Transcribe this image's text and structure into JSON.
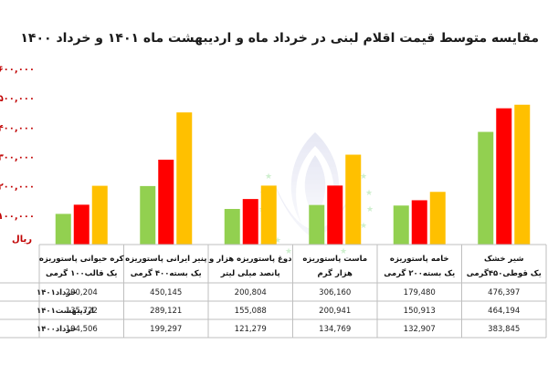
{
  "chart_data": {
    "type": "bar",
    "title": "مقایسه متوسط قیمت اقلام لبنی در خرداد ماه  و اردیبهشت ماه ۱۴۰۱ و خرداد ۱۴۰۰",
    "ylabel": "ریال",
    "ylim": [
      0,
      600000
    ],
    "y_ticks": [
      "۱۰۰,۰۰۰",
      "۲۰۰,۰۰۰",
      "۳۰۰,۰۰۰",
      "۴۰۰,۰۰۰",
      "۵۰۰,۰۰۰",
      "۶۰۰,۰۰۰"
    ],
    "y_tick_values": [
      100000,
      200000,
      300000,
      400000,
      500000,
      600000
    ],
    "categories": [
      [
        "کره حیوانی پاستوریزه",
        "یک قالب۱۰۰ گرمی"
      ],
      [
        "پنیر ایرانی پاستوریزه",
        "یک بسته۴۰۰ گرمی"
      ],
      [
        "دوغ پاستوریزه هزار و",
        "پانصد میلی لیتر"
      ],
      [
        "ماست پاستوریزه",
        "هزار گرم"
      ],
      [
        "خامه پاستوریزه",
        "یک بسته۲۰۰ گرمی"
      ],
      [
        "شیر خشک",
        "یک قوطی۴۵۰گرمی"
      ]
    ],
    "series": [
      {
        "name": "خرداد۱۴۰۱",
        "color": "#ffc000",
        "values": [
          200204,
          450145,
          200804,
          306160,
          179480,
          476397
        ],
        "labels": [
          "200,204",
          "450,145",
          "200,804",
          "306,160",
          "179,480",
          "476,397"
        ]
      },
      {
        "name": "اردیبهشت۱۴۰۱",
        "color": "#ff0000",
        "values": [
          135722,
          289121,
          155088,
          200941,
          150913,
          464194
        ],
        "labels": [
          "135,722",
          "289,121",
          "155,088",
          "200,941",
          "150,913",
          "464,194"
        ]
      },
      {
        "name": "خرداد۱۴۰۰",
        "color": "#92d050",
        "values": [
          104506,
          199297,
          121279,
          134769,
          132907,
          383845
        ],
        "labels": [
          "104,506",
          "199,297",
          "121,279",
          "134,769",
          "132,907",
          "383,845"
        ]
      }
    ],
    "bar_order": [
      "خرداد۱۴۰۰",
      "اردیبهشت۱۴۰۱",
      "خرداد۱۴۰۱"
    ],
    "grid": false,
    "legend": "table-left"
  }
}
